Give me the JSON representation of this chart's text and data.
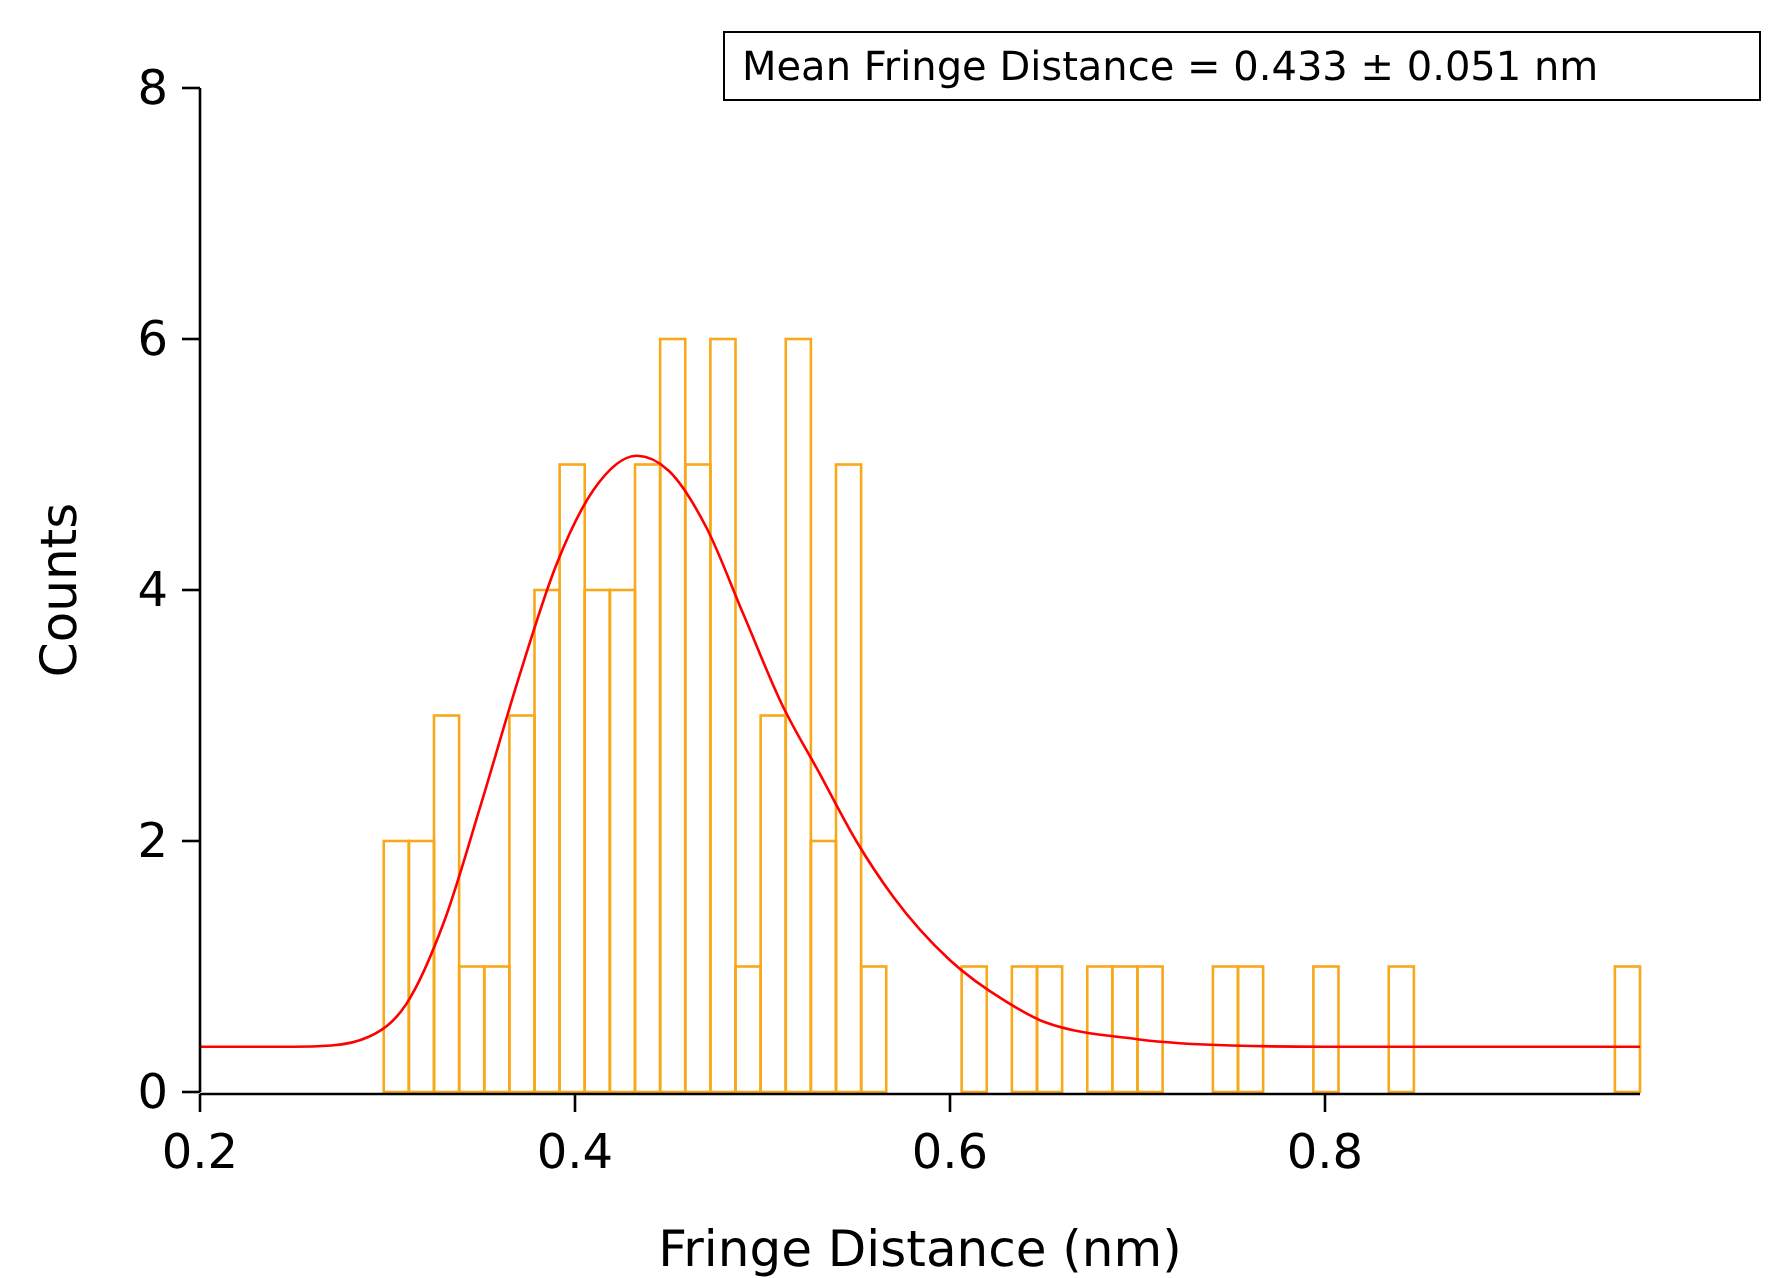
{
  "chart_data": {
    "type": "histogram",
    "xlabel": "Fringe Distance (nm)",
    "ylabel": "Counts",
    "annotations": [
      "Mean Fringe Distance = 0.433 ± 0.051 nm"
    ],
    "xlim": [
      0.2,
      0.968
    ],
    "xticks": [
      0.2,
      0.4,
      0.6,
      0.8
    ],
    "ylim": [
      0,
      8
    ],
    "yticks": [
      0,
      2,
      4,
      6,
      8
    ],
    "grid": false,
    "series": [
      {
        "color": "#f7a81b",
        "bins": [
          0.298,
          0.3114,
          0.3248,
          0.3382,
          0.3516,
          0.365,
          0.3784,
          0.3918,
          0.4052,
          0.4186,
          0.432,
          0.4454,
          0.4588,
          0.4722,
          0.4856,
          0.499,
          0.5124,
          0.5258,
          0.5392,
          0.5526,
          0.566,
          0.5794,
          0.5928,
          0.6062,
          0.6196,
          0.633,
          0.6464,
          0.6598,
          0.6732,
          0.6866,
          0.7,
          0.7134,
          0.7268,
          0.7402,
          0.7536,
          0.767,
          0.7804,
          0.7938,
          0.8072,
          0.8206,
          0.834,
          0.8474,
          0.8608,
          0.8742,
          0.8876,
          0.901,
          0.9144,
          0.9278,
          0.9412,
          0.9546,
          0.968
        ],
        "values": [
          2,
          2,
          3,
          1,
          1,
          3,
          4,
          5,
          4,
          4,
          5,
          6,
          5,
          6,
          1,
          3,
          6,
          2,
          5,
          1,
          0,
          0,
          0,
          1,
          0,
          1,
          1,
          0,
          1,
          1,
          1,
          0,
          0,
          1,
          1,
          0,
          0,
          1,
          0,
          0,
          1,
          0,
          0,
          0,
          0,
          0,
          0,
          0,
          0,
          1
        ]
      },
      {
        "type": "line",
        "color": "#ff0000",
        "x": [
          0.2,
          0.25,
          0.27,
          0.29,
          0.31,
          0.33,
          0.35,
          0.37,
          0.39,
          0.41,
          0.433,
          0.45,
          0.47,
          0.49,
          0.51,
          0.53,
          0.55,
          0.57,
          0.6,
          0.63,
          0.65,
          0.7,
          0.75,
          0.8,
          0.968
        ],
        "values": [
          0.36,
          0.36,
          0.37,
          0.44,
          0.7,
          1.35,
          2.3,
          3.3,
          4.2,
          4.8,
          5.07,
          4.95,
          4.5,
          3.8,
          3.1,
          2.55,
          2.0,
          1.55,
          1.05,
          0.72,
          0.56,
          0.42,
          0.37,
          0.36,
          0.36
        ]
      }
    ]
  }
}
